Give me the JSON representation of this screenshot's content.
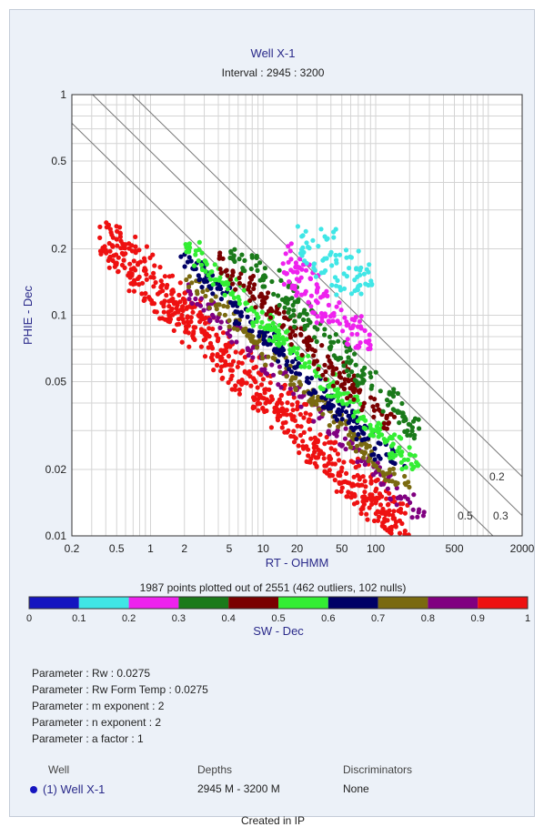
{
  "chart_data": {
    "type": "scatter",
    "title": "Well X-1",
    "subtitle": "Interval : 2945 : 3200",
    "xlabel": "RT - OHMM",
    "ylabel": "PHIE - Dec",
    "x_scale": "log",
    "y_scale": "log",
    "xlim": [
      0.2,
      2000
    ],
    "ylim": [
      0.01,
      1
    ],
    "x_ticks": [
      "0.2",
      "0.5",
      "1",
      "2",
      "5",
      "10",
      "20",
      "50",
      "100",
      "500",
      "2000"
    ],
    "y_ticks": [
      "0.01",
      "0.02",
      "0.05",
      "0.1",
      "0.2",
      "0.5",
      "1"
    ],
    "grid": true,
    "color_by": "SW - Dec",
    "colorbar": {
      "label": "SW - Dec",
      "ticks": [
        "0",
        "0.1",
        "0.2",
        "0.3",
        "0.4",
        "0.5",
        "0.6",
        "0.7",
        "0.8",
        "0.9",
        "1"
      ],
      "colors": [
        "#1515c0",
        "#40e6e6",
        "#ee22ee",
        "#1a7a1a",
        "#7a0000",
        "#33ee33",
        "#000066",
        "#7a6a10",
        "#800080",
        "#ee1111"
      ]
    },
    "sw_lines": [
      {
        "label": "0.2",
        "sw": 0.2
      },
      {
        "label": "0.3",
        "sw": 0.3
      },
      {
        "label": "0.5",
        "sw": 0.5
      }
    ],
    "clusters": [
      {
        "sw_bin": "0.9-1",
        "rt_range": [
          0.35,
          200
        ],
        "phie_range": [
          0.01,
          0.27
        ]
      },
      {
        "sw_bin": "0.8-0.9",
        "rt_range": [
          2,
          300
        ],
        "phie_range": [
          0.012,
          0.15
        ]
      },
      {
        "sw_bin": "0.7-0.8",
        "rt_range": [
          2,
          200
        ],
        "phie_range": [
          0.015,
          0.15
        ]
      },
      {
        "sw_bin": "0.6-0.7",
        "rt_range": [
          1.8,
          200
        ],
        "phie_range": [
          0.02,
          0.2
        ]
      },
      {
        "sw_bin": "0.5-0.6",
        "rt_range": [
          2,
          300
        ],
        "phie_range": [
          0.02,
          0.22
        ]
      },
      {
        "sw_bin": "0.4-0.5",
        "rt_range": [
          4,
          150
        ],
        "phie_range": [
          0.03,
          0.2
        ]
      },
      {
        "sw_bin": "0.3-0.4",
        "rt_range": [
          5,
          250
        ],
        "phie_range": [
          0.02,
          0.2
        ]
      },
      {
        "sw_bin": "0.2-0.3",
        "rt_range": [
          15,
          90
        ],
        "phie_range": [
          0.07,
          0.26
        ]
      },
      {
        "sw_bin": "0.1-0.2",
        "rt_range": [
          20,
          100
        ],
        "phie_range": [
          0.12,
          0.26
        ]
      }
    ],
    "points_note": "1987 points plotted out of 2551 (462 outliers, 102 nulls)"
  },
  "parameters": [
    "Parameter : Rw    : 0.0275",
    "Parameter : Rw Form Temp : 0.0275",
    "Parameter : m exponent : 2",
    "Parameter : n exponent : 2",
    "Parameter : a factor : 1"
  ],
  "legend": {
    "well_header": "Well",
    "well_value": "(1)  Well X-1",
    "depths_header": "Depths",
    "depths_value": "2945 M - 3200 M",
    "disc_header": "Discriminators",
    "disc_value": "None",
    "dot_color": "#1515c0"
  },
  "footer": "Created in IP"
}
